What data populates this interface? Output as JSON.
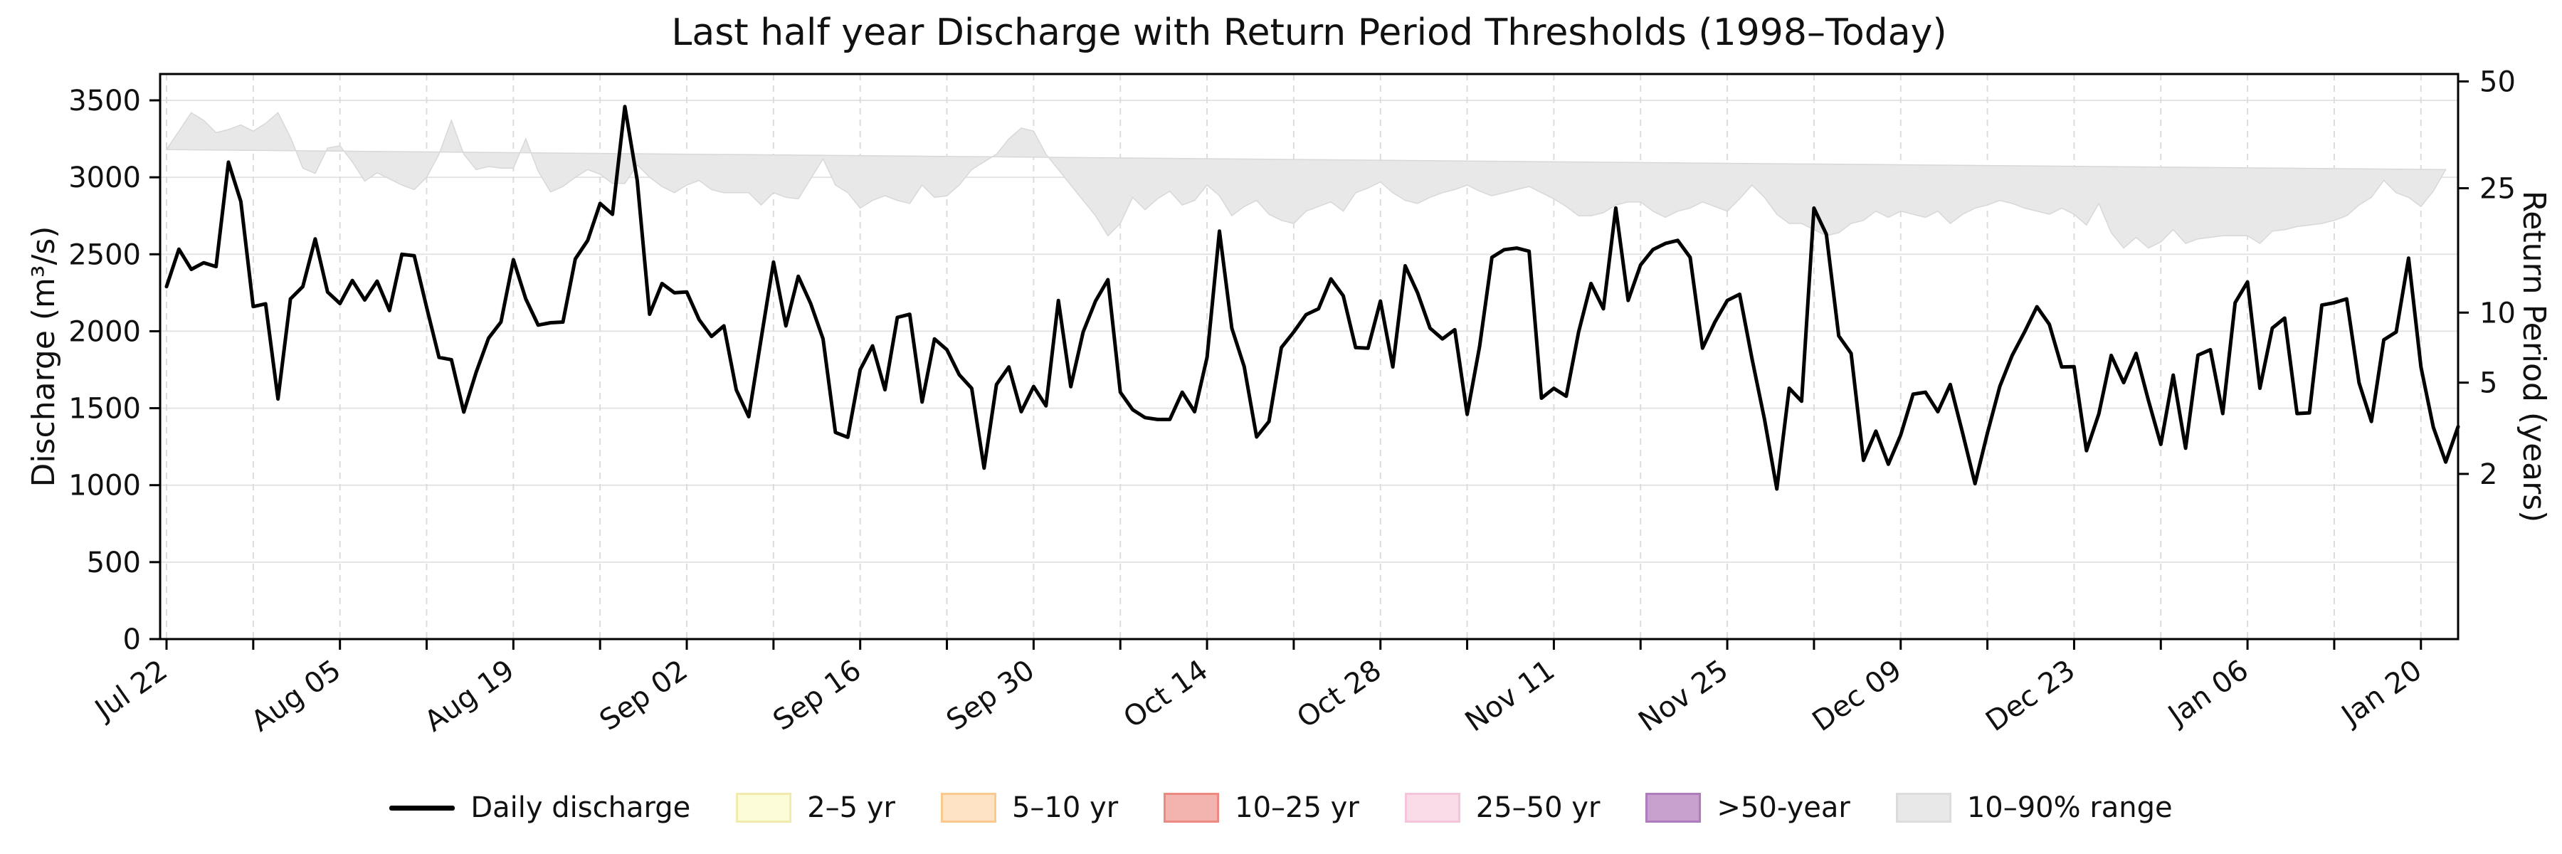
{
  "title": "Last half year Discharge with Return Period Thresholds (1998–Today)",
  "axes": {
    "left_label": "Discharge (m³/s)",
    "right_label": "Return Period (years)"
  },
  "legend": {
    "items": [
      {
        "label": "Daily discharge",
        "kind": "line",
        "color": "#000000"
      },
      {
        "label": "2–5 yr",
        "kind": "patch",
        "fill": "#fdfcd9",
        "edge": "#f1ecae"
      },
      {
        "label": "5–10 yr",
        "kind": "patch",
        "fill": "#fde3c3",
        "edge": "#fbc88d"
      },
      {
        "label": "10–25 yr",
        "kind": "patch",
        "fill": "#f3b4af",
        "edge": "#ec8a82"
      },
      {
        "label": "25–50 yr",
        "kind": "patch",
        "fill": "#fadce9",
        "edge": "#f5c3da"
      },
      {
        "label": ">50-year",
        "kind": "patch",
        "fill": "#c7a0ce",
        "edge": "#ae7cbc"
      },
      {
        "label": "10–90% range",
        "kind": "patch",
        "fill": "#e8e8e8",
        "edge": "#dcdcdc"
      }
    ]
  },
  "chart_data": {
    "type": "line",
    "title": "Last half year Discharge with Return Period Thresholds (1998–Today)",
    "xlabel": "",
    "ylabel": "Discharge (m³/s)",
    "ylabel_right": "Return Period (years)",
    "grid": true,
    "legend_position": "bottom",
    "x_start_date": "Jul 22",
    "x_end_date": "Jan 22",
    "x_tick_labels": [
      "Jul 22",
      "Aug 05",
      "Aug 19",
      "Sep 02",
      "Sep 16",
      "Sep 30",
      "Oct 14",
      "Oct 28",
      "Nov 11",
      "Nov 25",
      "Dec 09",
      "Dec 23",
      "Jan 06",
      "Jan 20"
    ],
    "x_major_tick_interval_days": 14,
    "x_minor_tick_interval_days": 7,
    "y_ticks": [
      0,
      500,
      1000,
      1500,
      2000,
      2500,
      3000,
      3500
    ],
    "ylim": [
      0,
      3670
    ],
    "right_axis_ticks": [
      {
        "label": "2",
        "discharge_value": 1073
      },
      {
        "label": "5",
        "discharge_value": 1666
      },
      {
        "label": "10",
        "discharge_value": 2121
      },
      {
        "label": "25",
        "discharge_value": 2929
      },
      {
        "label": "50",
        "discharge_value": 3623
      }
    ],
    "return_period_thresholds_m3s": {
      "2yr": 1073,
      "5yr": 1666,
      "10yr": 2121,
      "25yr": 2929,
      "50yr": 3623
    },
    "series": [
      {
        "name": "Daily discharge",
        "color": "#000000",
        "values": [
          2290,
          2533,
          2402,
          2445,
          2420,
          3098,
          2843,
          2160,
          2178,
          1560,
          2210,
          2290,
          2600,
          2255,
          2180,
          2330,
          2203,
          2325,
          2134,
          2500,
          2490,
          2155,
          1830,
          1815,
          1475,
          1734,
          1955,
          2060,
          2465,
          2210,
          2040,
          2055,
          2060,
          2470,
          2590,
          2830,
          2760,
          3460,
          2980,
          2110,
          2310,
          2250,
          2255,
          2075,
          1966,
          2035,
          1619,
          1445,
          1950,
          2449,
          2035,
          2357,
          2180,
          1950,
          1342,
          1311,
          1750,
          1905,
          1620,
          2090,
          2110,
          1540,
          1950,
          1880,
          1717,
          1629,
          1111,
          1654,
          1768,
          1477,
          1641,
          1515,
          2200,
          1640,
          1995,
          2196,
          2335,
          1604,
          1490,
          1439,
          1427,
          1427,
          1604,
          1477,
          1830,
          2650,
          2020,
          1770,
          1313,
          1414,
          1894,
          1995,
          2108,
          2146,
          2340,
          2230,
          1894,
          1890,
          2196,
          1768,
          2425,
          2250,
          2020,
          1950,
          2010,
          1460,
          1900,
          2480,
          2530,
          2540,
          2520,
          1565,
          1629,
          1578,
          1995,
          2310,
          2146,
          2800,
          2200,
          2430,
          2530,
          2570,
          2590,
          2480,
          1890,
          2060,
          2200,
          2240,
          1820,
          1430,
          975,
          1630,
          1545,
          2800,
          2630,
          1970,
          1856,
          1161,
          1351,
          1136,
          1326,
          1591,
          1604,
          1477,
          1654,
          1338,
          1010,
          1338,
          1641,
          1843,
          1995,
          2159,
          2045,
          1768,
          1770,
          1224,
          1464,
          1843,
          1666,
          1856,
          1550,
          1265,
          1715,
          1240,
          1845,
          1880,
          1465,
          2185,
          2320,
          1630,
          2020,
          2085,
          1465,
          1470,
          2170,
          2185,
          2210,
          1666,
          1414,
          1944,
          1995,
          2475,
          1768,
          1376,
          1150,
          1380
        ]
      },
      {
        "name": "10–90% range upper",
        "color": "#e8e8e8",
        "values": [
          3180,
          3300,
          3420,
          3370,
          3290,
          3310,
          3340,
          3300,
          3350,
          3420,
          3260,
          3060,
          3025,
          3190,
          3205,
          3100,
          2975,
          3030,
          2990,
          2950,
          2920,
          3000,
          3150,
          3370,
          3150,
          3050,
          3070,
          3060,
          3060,
          3250,
          3040,
          2905,
          2940,
          3000,
          3050,
          3020,
          2960,
          2960,
          3080,
          3000,
          2940,
          2900,
          2950,
          2980,
          2920,
          2900,
          2900,
          2900,
          2820,
          2900,
          2870,
          2860,
          2990,
          3120,
          2950,
          2900,
          2800,
          2850,
          2880,
          2850,
          2830,
          2950,
          2870,
          2880,
          2950,
          3050,
          3100,
          3150,
          3250,
          3320,
          3300,
          3150,
          3050,
          2950,
          2850,
          2750,
          2620,
          2700,
          2870,
          2790,
          2860,
          2910,
          2820,
          2850,
          2950,
          2880,
          2750,
          2810,
          2850,
          2760,
          2720,
          2700,
          2780,
          2810,
          2840,
          2780,
          2900,
          2930,
          2970,
          2900,
          2850,
          2830,
          2870,
          2900,
          2920,
          2950,
          2910,
          2880,
          2900,
          2920,
          2940,
          2900,
          2860,
          2810,
          2750,
          2750,
          2770,
          2820,
          2840,
          2840,
          2780,
          2740,
          2780,
          2800,
          2840,
          2810,
          2780,
          2860,
          2950,
          2870,
          2760,
          2700,
          2700,
          2660,
          2620,
          2640,
          2700,
          2720,
          2780,
          2740,
          2780,
          2760,
          2740,
          2780,
          2700,
          2760,
          2800,
          2820,
          2850,
          2830,
          2800,
          2780,
          2760,
          2800,
          2760,
          2690,
          2830,
          2640,
          2540,
          2610,
          2540,
          2580,
          2660,
          2570,
          2600,
          2610,
          2620,
          2620,
          2620,
          2570,
          2650,
          2660,
          2680,
          2690,
          2700,
          2720,
          2750,
          2820,
          2870,
          2980,
          2900,
          2870,
          2810,
          2910,
          3050
        ]
      },
      {
        "name": "10–90% range lower",
        "color": "#e8e8e8",
        "values": [
          1450,
          1465,
          1480,
          1440,
          1400,
          1420,
          1415,
          1345,
          1340,
          1370,
          1360,
          1395,
          1405,
          1375,
          1360,
          1300,
          1290,
          1320,
          1355,
          1330,
          1310,
          1300,
          1320,
          1335,
          1390,
          1375,
          1310,
          1325,
          1340,
          1360,
          1400,
          1430,
          1400,
          1350,
          1290,
          1260,
          1230,
          1290,
          1330,
          1355,
          1380,
          1370,
          1310,
          1350,
          1390,
          1355,
          1340,
          1290,
          1240,
          1290,
          1330,
          1300,
          1310,
          1330,
          1280,
          1300,
          1260,
          1320,
          1300,
          1340,
          1310,
          1300,
          1310,
          1180,
          1150,
          1100,
          1060,
          1130,
          1190,
          1160,
          1200,
          1200,
          1250,
          1300,
          1240,
          1220,
          1220,
          1180,
          1160,
          1180,
          1200,
          1180,
          1210,
          1230,
          1180,
          1180,
          1160,
          1160,
          1200,
          1200,
          1170,
          1150,
          1170,
          1190,
          1200,
          1230,
          1240,
          1250,
          1230,
          1200,
          1180,
          1170,
          1160,
          1160,
          1160,
          1160,
          1190,
          1220,
          1250,
          1270,
          1280,
          1250,
          1220,
          1200,
          1160,
          1120,
          1120,
          1160,
          1190,
          1160,
          1130,
          1110,
          1100,
          1140,
          1180,
          1210,
          1250,
          1230,
          1180,
          1130,
          1150,
          1180,
          1160,
          1150,
          1120,
          1100,
          1120,
          1160,
          1140,
          1140,
          1140,
          1180,
          1210,
          1190,
          1160,
          1120,
          1140,
          1190,
          1210,
          1230,
          1200,
          1180,
          1210,
          1210,
          1180,
          1160,
          1170,
          1200,
          1230,
          1230,
          1190,
          1180,
          1160,
          1130,
          1060,
          1080,
          1100,
          1120,
          1120,
          1080,
          1040,
          1100,
          1150,
          1200,
          1240,
          1240,
          1210,
          1190,
          1160,
          1140,
          1130,
          1130,
          1190,
          1240,
          1325
        ]
      }
    ]
  },
  "style": {
    "line_color": "#000000",
    "band_fill": "#e8e8e8",
    "band_edge": "#d8d8d8",
    "hgrid_color": "#e4e4e4",
    "vgrid_color": "#dcdcdc",
    "spine_color": "#000000",
    "text_color": "#111111"
  }
}
